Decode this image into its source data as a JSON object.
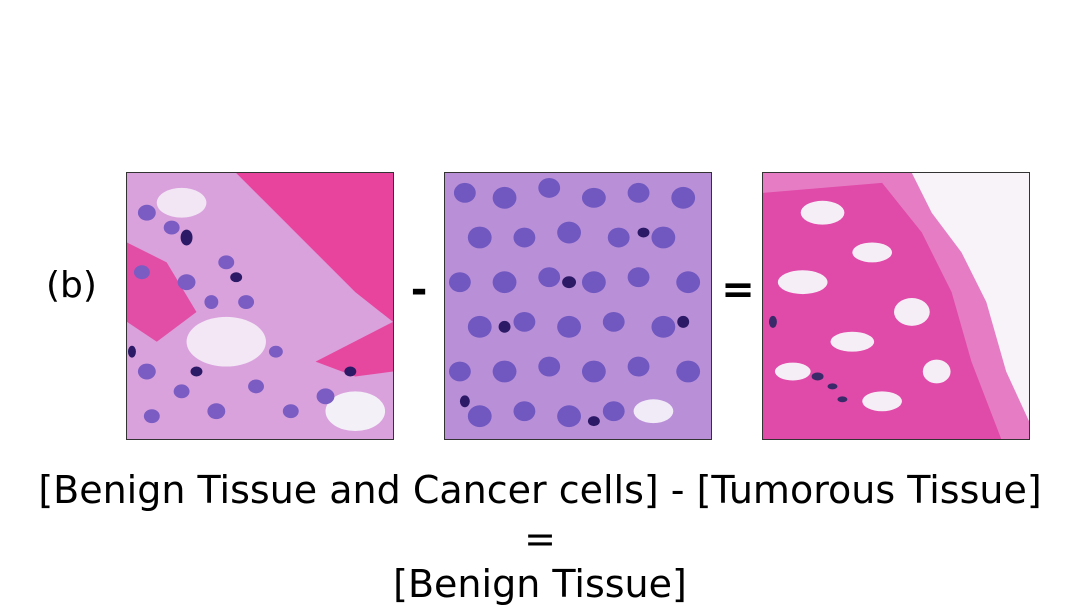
{
  "panel_label": "(b)",
  "operators": {
    "minus": "-",
    "equals": "="
  },
  "images": [
    {
      "name": "benign-tissue-and-cancer-cells-image",
      "content": "histology-pink-stroma-with-purple-nuclei"
    },
    {
      "name": "tumorous-tissue-image",
      "content": "histology-dense-purple-nuclei"
    },
    {
      "name": "benign-tissue-image",
      "content": "histology-pink-stroma-with-white-spaces"
    }
  ],
  "colors": {
    "stroma_pink": "#e8449e",
    "tissue_lilac": "#d79ad8",
    "nucleus_purple": "#6a4fb6",
    "nucleus_dark": "#2c1a66",
    "background": "#ffffff"
  },
  "caption": {
    "line1": "[Benign Tissue and Cancer cells] - [Tumorous Tissue]",
    "line2": "=",
    "line3": "[Benign Tissue]"
  }
}
